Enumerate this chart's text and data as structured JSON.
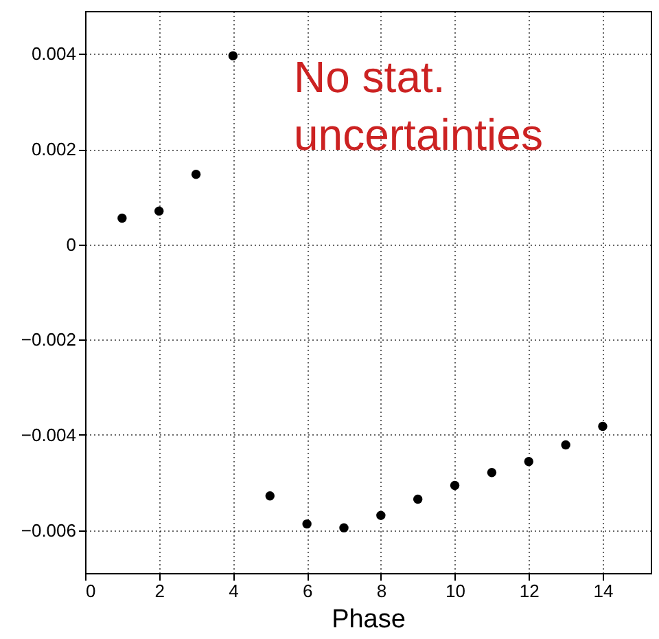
{
  "chart_data": {
    "type": "scatter",
    "xlabel": "Phase",
    "x": [
      1,
      2,
      3,
      4,
      5,
      6,
      7,
      8,
      9,
      10,
      11,
      12,
      13,
      14
    ],
    "values": [
      0.00055,
      0.0007,
      0.00147,
      0.00396,
      -0.00528,
      -0.00587,
      -0.00595,
      -0.00569,
      -0.00535,
      -0.00506,
      -0.00479,
      -0.00456,
      -0.00421,
      -0.00382
    ],
    "color": "#000000",
    "marker": "circle",
    "xlim": [
      0,
      15.3
    ],
    "xticks": [
      0,
      2,
      4,
      6,
      8,
      10,
      12,
      14
    ],
    "ylim": [
      -0.0069,
      0.0049
    ],
    "yticks": [
      -0.006,
      -0.004,
      -0.002,
      0,
      0.002,
      0.004
    ],
    "grid": true,
    "annotations": [
      "No stat.\nuncertainties"
    ]
  }
}
